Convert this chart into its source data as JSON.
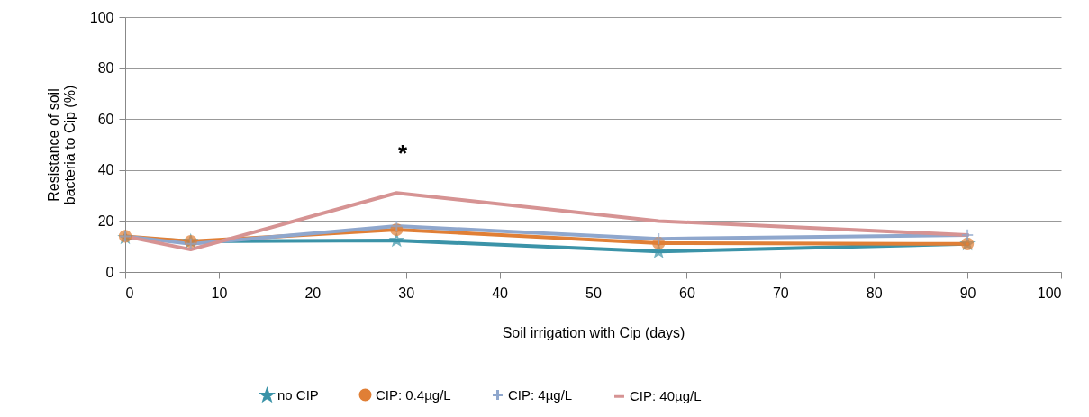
{
  "chart_data": {
    "type": "line",
    "xlabel": "Soil irrigation with Cip (days)",
    "ylabel": "Resistance of soil bacteria to Cip (%)",
    "x": [
      0,
      7,
      29,
      57,
      90
    ],
    "series": [
      {
        "name": "no CIP",
        "color": "#3b93a8",
        "marker": "star",
        "values": [
          13.5,
          12,
          12.4,
          8,
          11
        ]
      },
      {
        "name": "CIP: 0.4µg/L",
        "color": "#e07f36",
        "marker": "circle",
        "values": [
          14,
          12,
          16.6,
          11.3,
          11
        ]
      },
      {
        "name": "CIP: 4µg/L",
        "color": "#8fa7cd",
        "marker": "cross",
        "values": [
          14,
          11,
          18,
          13,
          14.5
        ]
      },
      {
        "name": "CIP: 40µg/L",
        "color": "#d69393",
        "marker": "none",
        "values": [
          14,
          8.8,
          31,
          20,
          14.5
        ]
      }
    ],
    "xlim": [
      0,
      100
    ],
    "xticks": [
      0,
      10,
      20,
      30,
      40,
      50,
      60,
      70,
      80,
      90,
      100
    ],
    "ylim": [
      0,
      100
    ],
    "yticks": [
      0,
      20,
      40,
      60,
      80,
      100
    ],
    "grid": "y",
    "legend": "bottom",
    "annotations": [
      "*"
    ]
  }
}
